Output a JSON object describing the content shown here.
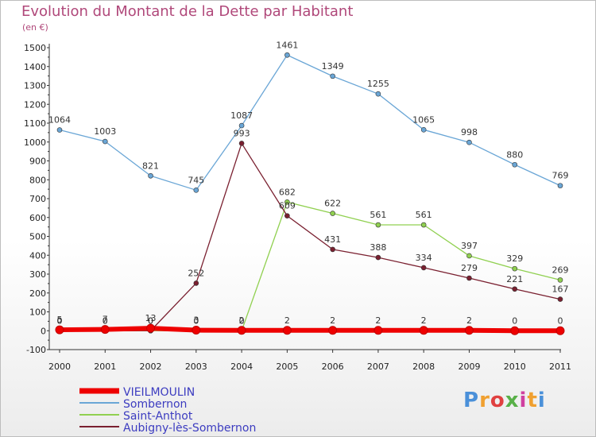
{
  "title": "Evolution du Montant de la Dette par Habitant",
  "subtitle": "(en €)",
  "logo": {
    "text": "Proxiti",
    "colors": [
      "#4a90d9",
      "#f0a030",
      "#e04040",
      "#58b048",
      "#d040a0",
      "#f0a030",
      "#4a90d9"
    ]
  },
  "chart_data": {
    "type": "line",
    "x": [
      "2000",
      "2001",
      "2002",
      "2003",
      "2004",
      "2005",
      "2006",
      "2007",
      "2008",
      "2009",
      "2010",
      "2011"
    ],
    "ylim": [
      -100,
      1500
    ],
    "yticks": [
      -100,
      0,
      100,
      200,
      300,
      400,
      500,
      600,
      700,
      800,
      900,
      1000,
      1100,
      1200,
      1300,
      1400,
      1500
    ],
    "grid": false,
    "legend": "bottom-left",
    "series": [
      {
        "name": "VIEILMOULIN",
        "color": "#ee0000",
        "values": [
          5,
          7,
          13,
          3,
          2,
          2,
          2,
          2,
          2,
          2,
          0,
          0
        ],
        "labels": [
          "5",
          "7",
          "13",
          "3",
          "2",
          "2",
          "2",
          "2",
          "2",
          "2",
          "0",
          "0"
        ]
      },
      {
        "name": "Sombernon",
        "color": "#6aa6d6",
        "values": [
          1064,
          1003,
          821,
          745,
          1087,
          1461,
          1349,
          1255,
          1065,
          998,
          880,
          769
        ],
        "labels": [
          "1064",
          "1003",
          "821",
          "745",
          "1087",
          "1461",
          "1349",
          "1255",
          "1065",
          "998",
          "880",
          "769"
        ]
      },
      {
        "name": "Saint-Anthot",
        "color": "#90d050",
        "values": [
          0,
          0,
          0,
          0,
          0,
          682,
          622,
          561,
          561,
          397,
          329,
          269
        ],
        "labels": [
          "0",
          "0",
          "0",
          "0",
          "0",
          "682",
          "622",
          "561",
          "561",
          "397",
          "329",
          "269"
        ]
      },
      {
        "name": "Aubigny-lès-Sombernon",
        "color": "#7a2030",
        "values": [
          0,
          0,
          0,
          252,
          993,
          609,
          431,
          388,
          334,
          279,
          221,
          167
        ],
        "labels": [
          "0",
          "0",
          "0",
          "252",
          "993",
          "609",
          "431",
          "388",
          "334",
          "279",
          "221",
          "167"
        ]
      }
    ]
  }
}
